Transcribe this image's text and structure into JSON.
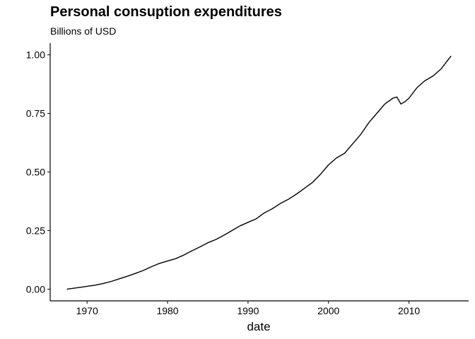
{
  "chart_data": {
    "type": "line",
    "title": "Personal consuption expenditures",
    "subtitle": "Billions of USD",
    "xlabel": "date",
    "ylabel": "",
    "xlim": [
      "1965-06-01",
      "2017-06-01"
    ],
    "ylim": [
      -0.05,
      1.05
    ],
    "x_ticks": [
      "1970",
      "1980",
      "1990",
      "2000",
      "2010"
    ],
    "y_ticks": [
      "0.00",
      "0.25",
      "0.50",
      "0.75",
      "1.00"
    ],
    "grid": false,
    "legend": "none",
    "series": [
      {
        "color": "#000000",
        "x": [
          "1967-07-01",
          "1969-01-01",
          "1970-01-01",
          "1971-01-01",
          "1972-01-01",
          "1973-01-01",
          "1974-01-01",
          "1975-01-01",
          "1976-01-01",
          "1977-01-01",
          "1978-01-01",
          "1979-01-01",
          "1980-01-01",
          "1981-01-01",
          "1982-01-01",
          "1983-01-01",
          "1984-01-01",
          "1985-01-01",
          "1986-01-01",
          "1987-01-01",
          "1988-01-01",
          "1989-01-01",
          "1990-01-01",
          "1991-01-01",
          "1992-01-01",
          "1993-01-01",
          "1994-01-01",
          "1995-01-01",
          "1996-01-01",
          "1997-01-01",
          "1998-01-01",
          "1999-01-01",
          "2000-01-01",
          "2001-01-01",
          "2002-01-01",
          "2003-01-01",
          "2004-01-01",
          "2005-01-01",
          "2006-01-01",
          "2007-01-01",
          "2008-01-01",
          "2008-07-01",
          "2009-01-01",
          "2009-07-01",
          "2010-01-01",
          "2011-01-01",
          "2012-01-01",
          "2013-01-01",
          "2014-01-01",
          "2015-01-01",
          "2015-04-01"
        ],
        "y": [
          0.0,
          0.007,
          0.012,
          0.017,
          0.024,
          0.033,
          0.044,
          0.055,
          0.067,
          0.08,
          0.096,
          0.11,
          0.12,
          0.13,
          0.145,
          0.163,
          0.18,
          0.198,
          0.212,
          0.23,
          0.25,
          0.27,
          0.285,
          0.3,
          0.325,
          0.343,
          0.365,
          0.383,
          0.405,
          0.43,
          0.455,
          0.49,
          0.53,
          0.56,
          0.58,
          0.62,
          0.66,
          0.71,
          0.75,
          0.79,
          0.815,
          0.82,
          0.79,
          0.8,
          0.815,
          0.86,
          0.89,
          0.91,
          0.94,
          0.985,
          0.995
        ]
      }
    ]
  }
}
